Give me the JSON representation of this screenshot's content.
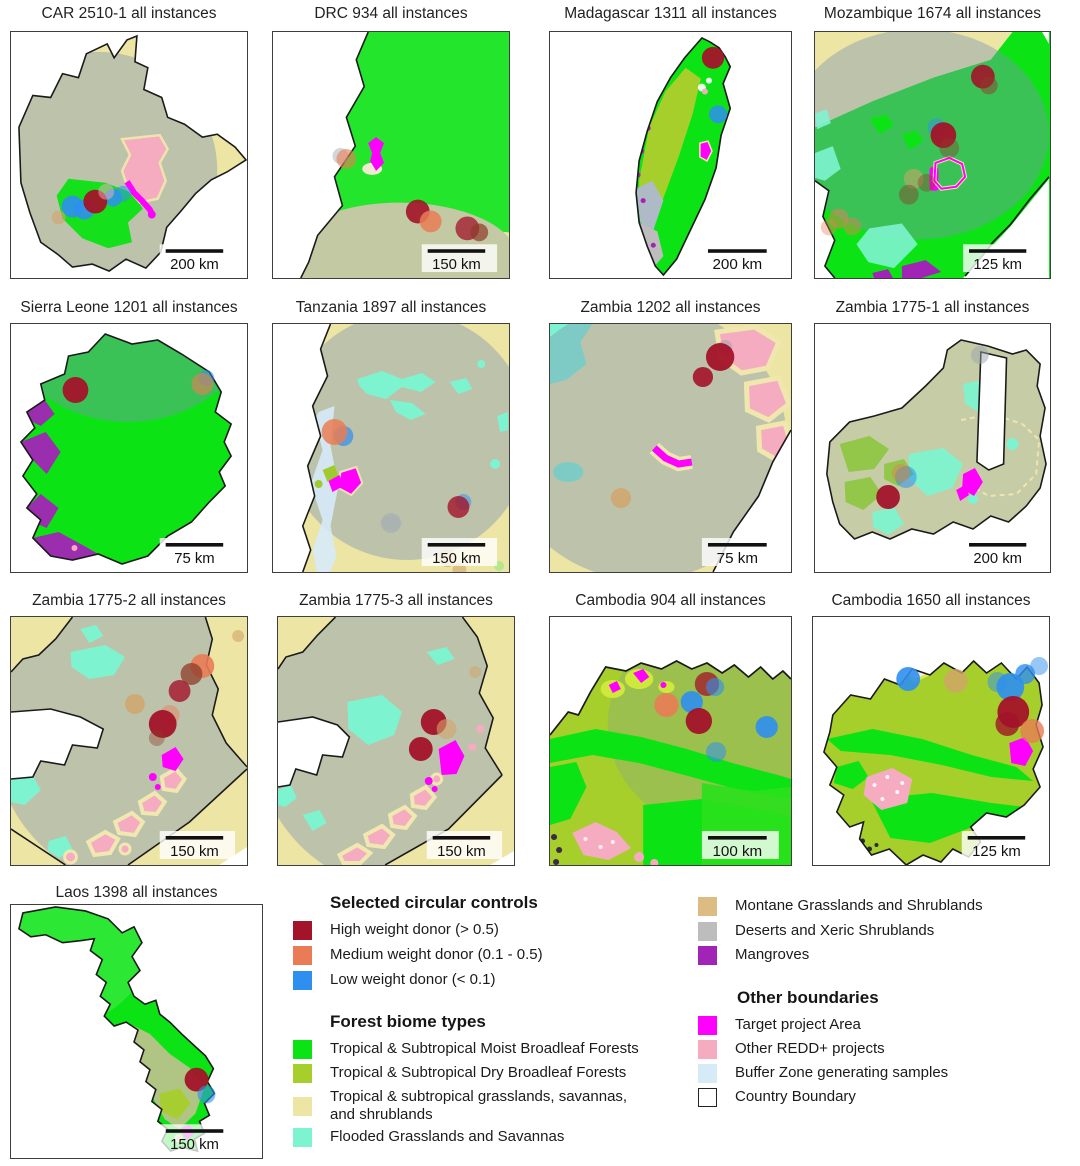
{
  "figure": {
    "panels": [
      {
        "title": "CAR 2510-1 all instances",
        "scale_label": "200 km",
        "dots": [
          [
            62,
            176,
            11,
            "low",
            0.9
          ],
          [
            74,
            179,
            10,
            "low",
            0.9
          ],
          [
            103,
            167,
            9,
            "low",
            0.85
          ],
          [
            113,
            163,
            8,
            "low",
            0.55
          ],
          [
            85,
            171,
            12,
            "high",
            0.95
          ],
          [
            48,
            187,
            7,
            "tan",
            0.6
          ],
          [
            96,
            161,
            8,
            "redd",
            0.5
          ]
        ]
      },
      {
        "title": "DRC 934 all instances",
        "scale_label": "150 km",
        "dots": [
          [
            68,
            125,
            8,
            "gray",
            0.45
          ],
          [
            74,
            128,
            10,
            "medium",
            0.6
          ],
          [
            146,
            181,
            12,
            "high",
            0.9
          ],
          [
            159,
            191,
            11,
            "medium",
            0.85
          ],
          [
            196,
            198,
            12,
            "high",
            0.75
          ],
          [
            208,
            202,
            9,
            "brown",
            0.7
          ]
        ]
      },
      {
        "title": "Madagascar 1311 all instances",
        "scale_label": "200 km",
        "dots": [
          [
            161,
            26,
            11,
            "high",
            0.95
          ],
          [
            166,
            83,
            9,
            "low",
            0.85
          ]
        ]
      },
      {
        "title": "Mozambique 1674 all instances",
        "scale_label": "125 km",
        "dots": [
          [
            170,
            45,
            12,
            "high",
            0.9
          ],
          [
            176,
            54,
            9,
            "brown",
            0.5
          ],
          [
            123,
            96,
            9,
            "low",
            0.5
          ],
          [
            130,
            104,
            13,
            "high",
            0.95
          ],
          [
            136,
            117,
            10,
            "brown",
            0.4
          ],
          [
            100,
            148,
            10,
            "tan",
            0.55
          ],
          [
            113,
            152,
            9,
            "brown",
            0.4
          ],
          [
            95,
            164,
            10,
            "brown",
            0.45
          ],
          [
            24,
            188,
            10,
            "medium",
            0.5
          ],
          [
            38,
            196,
            9,
            "medium",
            0.45
          ],
          [
            14,
            197,
            8,
            "medium",
            0.4
          ]
        ]
      },
      {
        "title": "Sierra Leone 1201 all instances",
        "scale_label": "75 km",
        "dots": [
          [
            65,
            66,
            13,
            "high",
            0.95
          ],
          [
            197,
            54,
            8,
            "low",
            0.5
          ],
          [
            193,
            60,
            11,
            "medium",
            0.6
          ]
        ]
      },
      {
        "title": "Tanzania 1897 all instances",
        "scale_label": "150 km",
        "dots": [
          [
            71,
            112,
            10,
            "low",
            0.7
          ],
          [
            62,
            108,
            13,
            "medium",
            0.85
          ],
          [
            192,
            178,
            8,
            "low",
            0.5
          ],
          [
            187,
            183,
            11,
            "high",
            0.8
          ],
          [
            176,
            234,
            9,
            "tan",
            0.75
          ],
          [
            188,
            246,
            7,
            "tan",
            0.6
          ],
          [
            119,
            199,
            10,
            "gray",
            0.45
          ]
        ]
      },
      {
        "title": "Zambia 1202 all instances",
        "scale_label": "75 km",
        "dots": [
          [
            173,
            23,
            7,
            "gray",
            0.5
          ],
          [
            168,
            33,
            14,
            "high",
            0.95
          ],
          [
            151,
            53,
            10,
            "high",
            0.9
          ],
          [
            70,
            174,
            10,
            "tan",
            0.8
          ]
        ]
      },
      {
        "title": "Zambia 1775-1 all instances",
        "scale_label": "200 km",
        "dots": [
          [
            167,
            31,
            9,
            "gray",
            0.5
          ],
          [
            92,
            153,
            11,
            "low",
            0.55
          ],
          [
            87,
            149,
            9,
            "medium",
            0.45
          ],
          [
            74,
            173,
            12,
            "high",
            0.95
          ]
        ]
      },
      {
        "title": "Zambia 1775-2 all instances",
        "scale_label": "150 km",
        "dots": [
          [
            229,
            19,
            6,
            "tan",
            0.6
          ],
          [
            193,
            49,
            12,
            "medium",
            0.9
          ],
          [
            182,
            57,
            11,
            "brown",
            0.75
          ],
          [
            170,
            74,
            11,
            "high",
            0.8
          ],
          [
            125,
            87,
            10,
            "tan",
            0.8
          ],
          [
            160,
            98,
            10,
            "medium",
            0.45
          ],
          [
            153,
            107,
            14,
            "high",
            0.95
          ],
          [
            147,
            121,
            8,
            "brown",
            0.4
          ]
        ]
      },
      {
        "title": "Zambia 1775-3 all instances",
        "scale_label": "150 km",
        "dots": [
          [
            199,
            55,
            6,
            "tan",
            0.5
          ],
          [
            157,
            105,
            13,
            "high",
            0.95
          ],
          [
            170,
            112,
            10,
            "tan",
            0.6
          ],
          [
            144,
            132,
            12,
            "high",
            0.95
          ]
        ]
      },
      {
        "title": "Cambodia 904 all instances",
        "scale_label": "100 km",
        "dots": [
          [
            155,
            67,
            12,
            "high",
            0.75
          ],
          [
            163,
            70,
            9,
            "low",
            0.6
          ],
          [
            115,
            88,
            12,
            "medium",
            0.9
          ],
          [
            140,
            85,
            11,
            "low",
            0.9
          ],
          [
            147,
            104,
            13,
            "high",
            0.95
          ],
          [
            214,
            110,
            11,
            "low",
            0.9
          ],
          [
            164,
            135,
            10,
            "low",
            0.55
          ]
        ]
      },
      {
        "title": "Cambodia 1650 all instances",
        "scale_label": "125 km",
        "dots": [
          [
            96,
            62,
            12,
            "low",
            0.9
          ],
          [
            144,
            64,
            12,
            "tan",
            0.8
          ],
          [
            214,
            57,
            10,
            "low",
            0.8
          ],
          [
            228,
            49,
            9,
            "low",
            0.5
          ],
          [
            199,
            70,
            14,
            "low",
            0.9
          ],
          [
            186,
            65,
            10,
            "low",
            0.5
          ],
          [
            202,
            95,
            16,
            "high",
            0.95
          ],
          [
            196,
            107,
            12,
            "high",
            0.8
          ],
          [
            221,
            114,
            12,
            "medium",
            0.8
          ]
        ]
      },
      {
        "title": "Laos 1398 all instances",
        "scale_label": "150 km",
        "dots": [
          [
            187,
            176,
            12,
            "high",
            0.95
          ],
          [
            197,
            191,
            9,
            "low",
            0.6
          ]
        ]
      }
    ]
  },
  "legend": {
    "sections": [
      {
        "heading": "Selected circular controls",
        "items": [
          {
            "label": "High weight donor (> 0.5)",
            "swatch": "high"
          },
          {
            "label": "Medium weight donor (0.1 - 0.5)",
            "swatch": "medium"
          },
          {
            "label": "Low weight donor (< 0.1)",
            "swatch": "low"
          }
        ]
      },
      {
        "heading": "Forest biome types",
        "items": [
          {
            "label": "Tropical & Subtropical Moist Broadleaf Forests",
            "swatch": "moist"
          },
          {
            "label": "Tropical & Subtropical Dry Broadleaf Forests",
            "swatch": "dry"
          },
          {
            "label": "Tropical & subtropical grasslands, savannas, and shrublands",
            "swatch": "grass"
          },
          {
            "label": "Flooded Grasslands and Savannas",
            "swatch": "flooded"
          },
          {
            "label": "Montane Grasslands and Shrublands",
            "swatch": "montane"
          },
          {
            "label": "Deserts and Xeric Shrublands",
            "swatch": "desert"
          },
          {
            "label": "Mangroves",
            "swatch": "mangrove"
          }
        ]
      },
      {
        "heading": "Other boundaries",
        "items": [
          {
            "label": "Target project Area",
            "swatch": "target"
          },
          {
            "label": "Other REDD+ projects",
            "swatch": "redd"
          },
          {
            "label": "Buffer Zone generating samples",
            "swatch": "buffer"
          },
          {
            "label": "Country Boundary",
            "swatch": "country"
          }
        ]
      }
    ]
  },
  "colors": {
    "high": "#a31329",
    "medium": "#e97c55",
    "low": "#2f8ff0",
    "moist": "#0be314",
    "dry": "#a6cf2b",
    "grass": "#ede5a4",
    "flooded": "#7ef3cf",
    "montane": "#dcbc82",
    "desert": "#bdbdbd",
    "mangrove": "#a224b6",
    "target": "#ff00ff",
    "redd": "#f5abc0",
    "buffer": "#d6eaf8",
    "country": "#ffffff",
    "boundary": "#1a1a1a",
    "tan": "#d2a46a",
    "gray": "#9aa4ad",
    "brown": "#8f3b2a",
    "sage": "#c3c9a2"
  }
}
